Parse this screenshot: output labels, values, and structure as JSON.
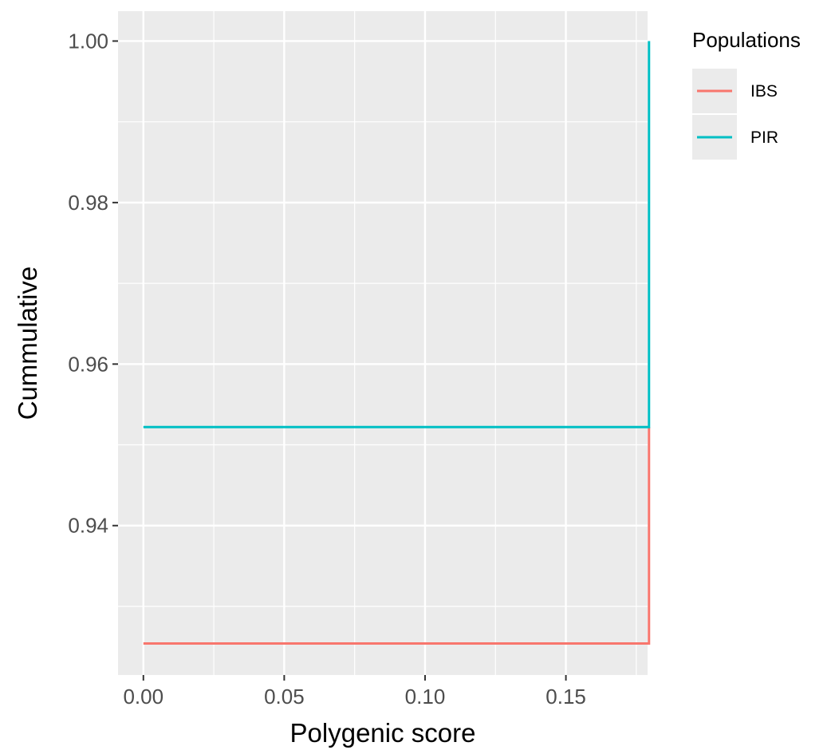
{
  "chart_data": {
    "type": "line",
    "step": true,
    "xlabel": "Polygenic score",
    "ylabel": "Cummulative",
    "xlim": [
      -0.009,
      0.179
    ],
    "ylim": [
      0.9215,
      1.0037
    ],
    "x_ticks": [
      0.0,
      0.05,
      0.1,
      0.15
    ],
    "x_tick_labels": [
      "0.00",
      "0.05",
      "0.10",
      "0.15"
    ],
    "y_ticks": [
      0.94,
      0.96,
      0.98,
      1.0
    ],
    "y_tick_labels": [
      "0.94",
      "0.96",
      "0.98",
      "1.00"
    ],
    "grid": true,
    "legend": {
      "title": "Populations",
      "placement": "right"
    },
    "series": [
      {
        "name": "IBS",
        "color": "#F8766D",
        "points": [
          [
            0.0,
            0.9254
          ],
          [
            0.1795,
            0.9254
          ],
          [
            0.1795,
            0.9522
          ]
        ]
      },
      {
        "name": "PIR",
        "color": "#00BFC4",
        "points": [
          [
            0.0,
            0.9522
          ],
          [
            0.1795,
            0.9522
          ],
          [
            0.1795,
            1.0
          ]
        ]
      }
    ]
  }
}
